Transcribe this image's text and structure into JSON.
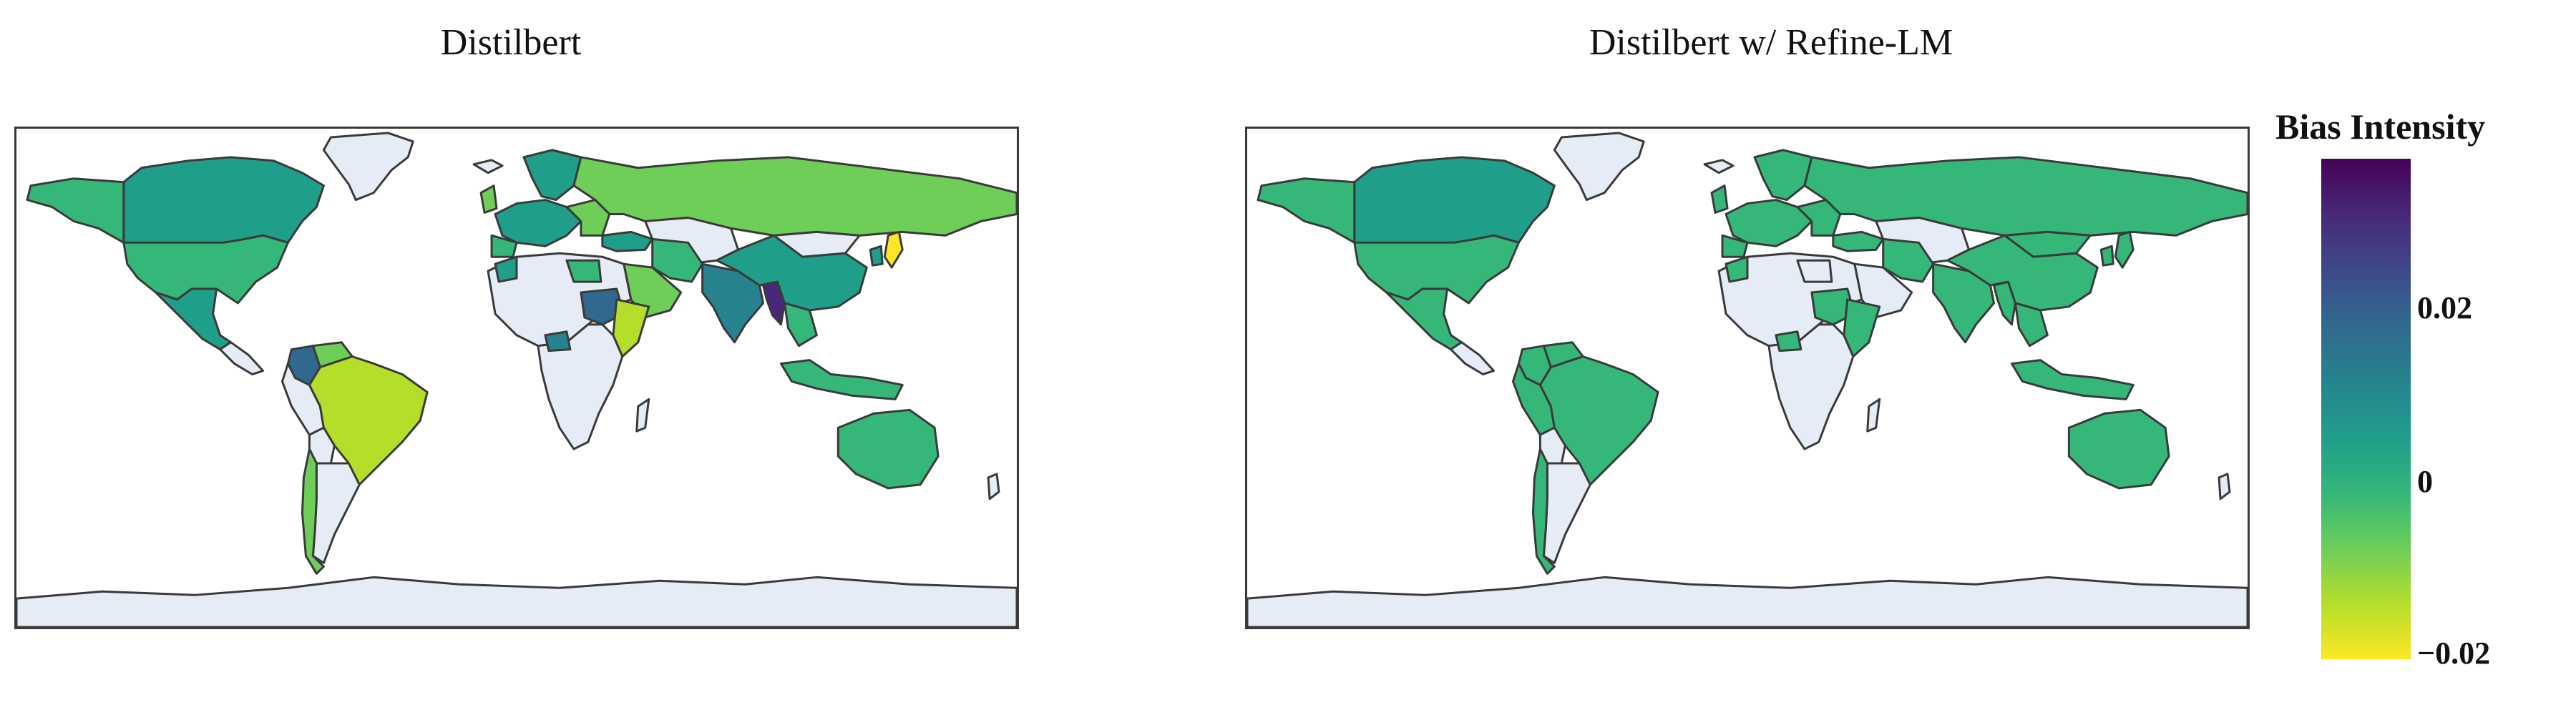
{
  "panels": [
    {
      "title": "Distilbert"
    },
    {
      "title": "Distilbert w/ Refine-LM"
    }
  ],
  "colorbar": {
    "title": "Bias Intensity",
    "ticks": [
      "0.02",
      "0",
      "−0.02"
    ],
    "colorscale": [
      "#fde725",
      "#b5de2b",
      "#6ece58",
      "#35b779",
      "#1f9e89",
      "#26828e",
      "#31688e",
      "#3e4989",
      "#482878",
      "#440154"
    ]
  },
  "colors": {
    "no_data": "#e5ecf6",
    "border": "#3a3a3a"
  }
}
